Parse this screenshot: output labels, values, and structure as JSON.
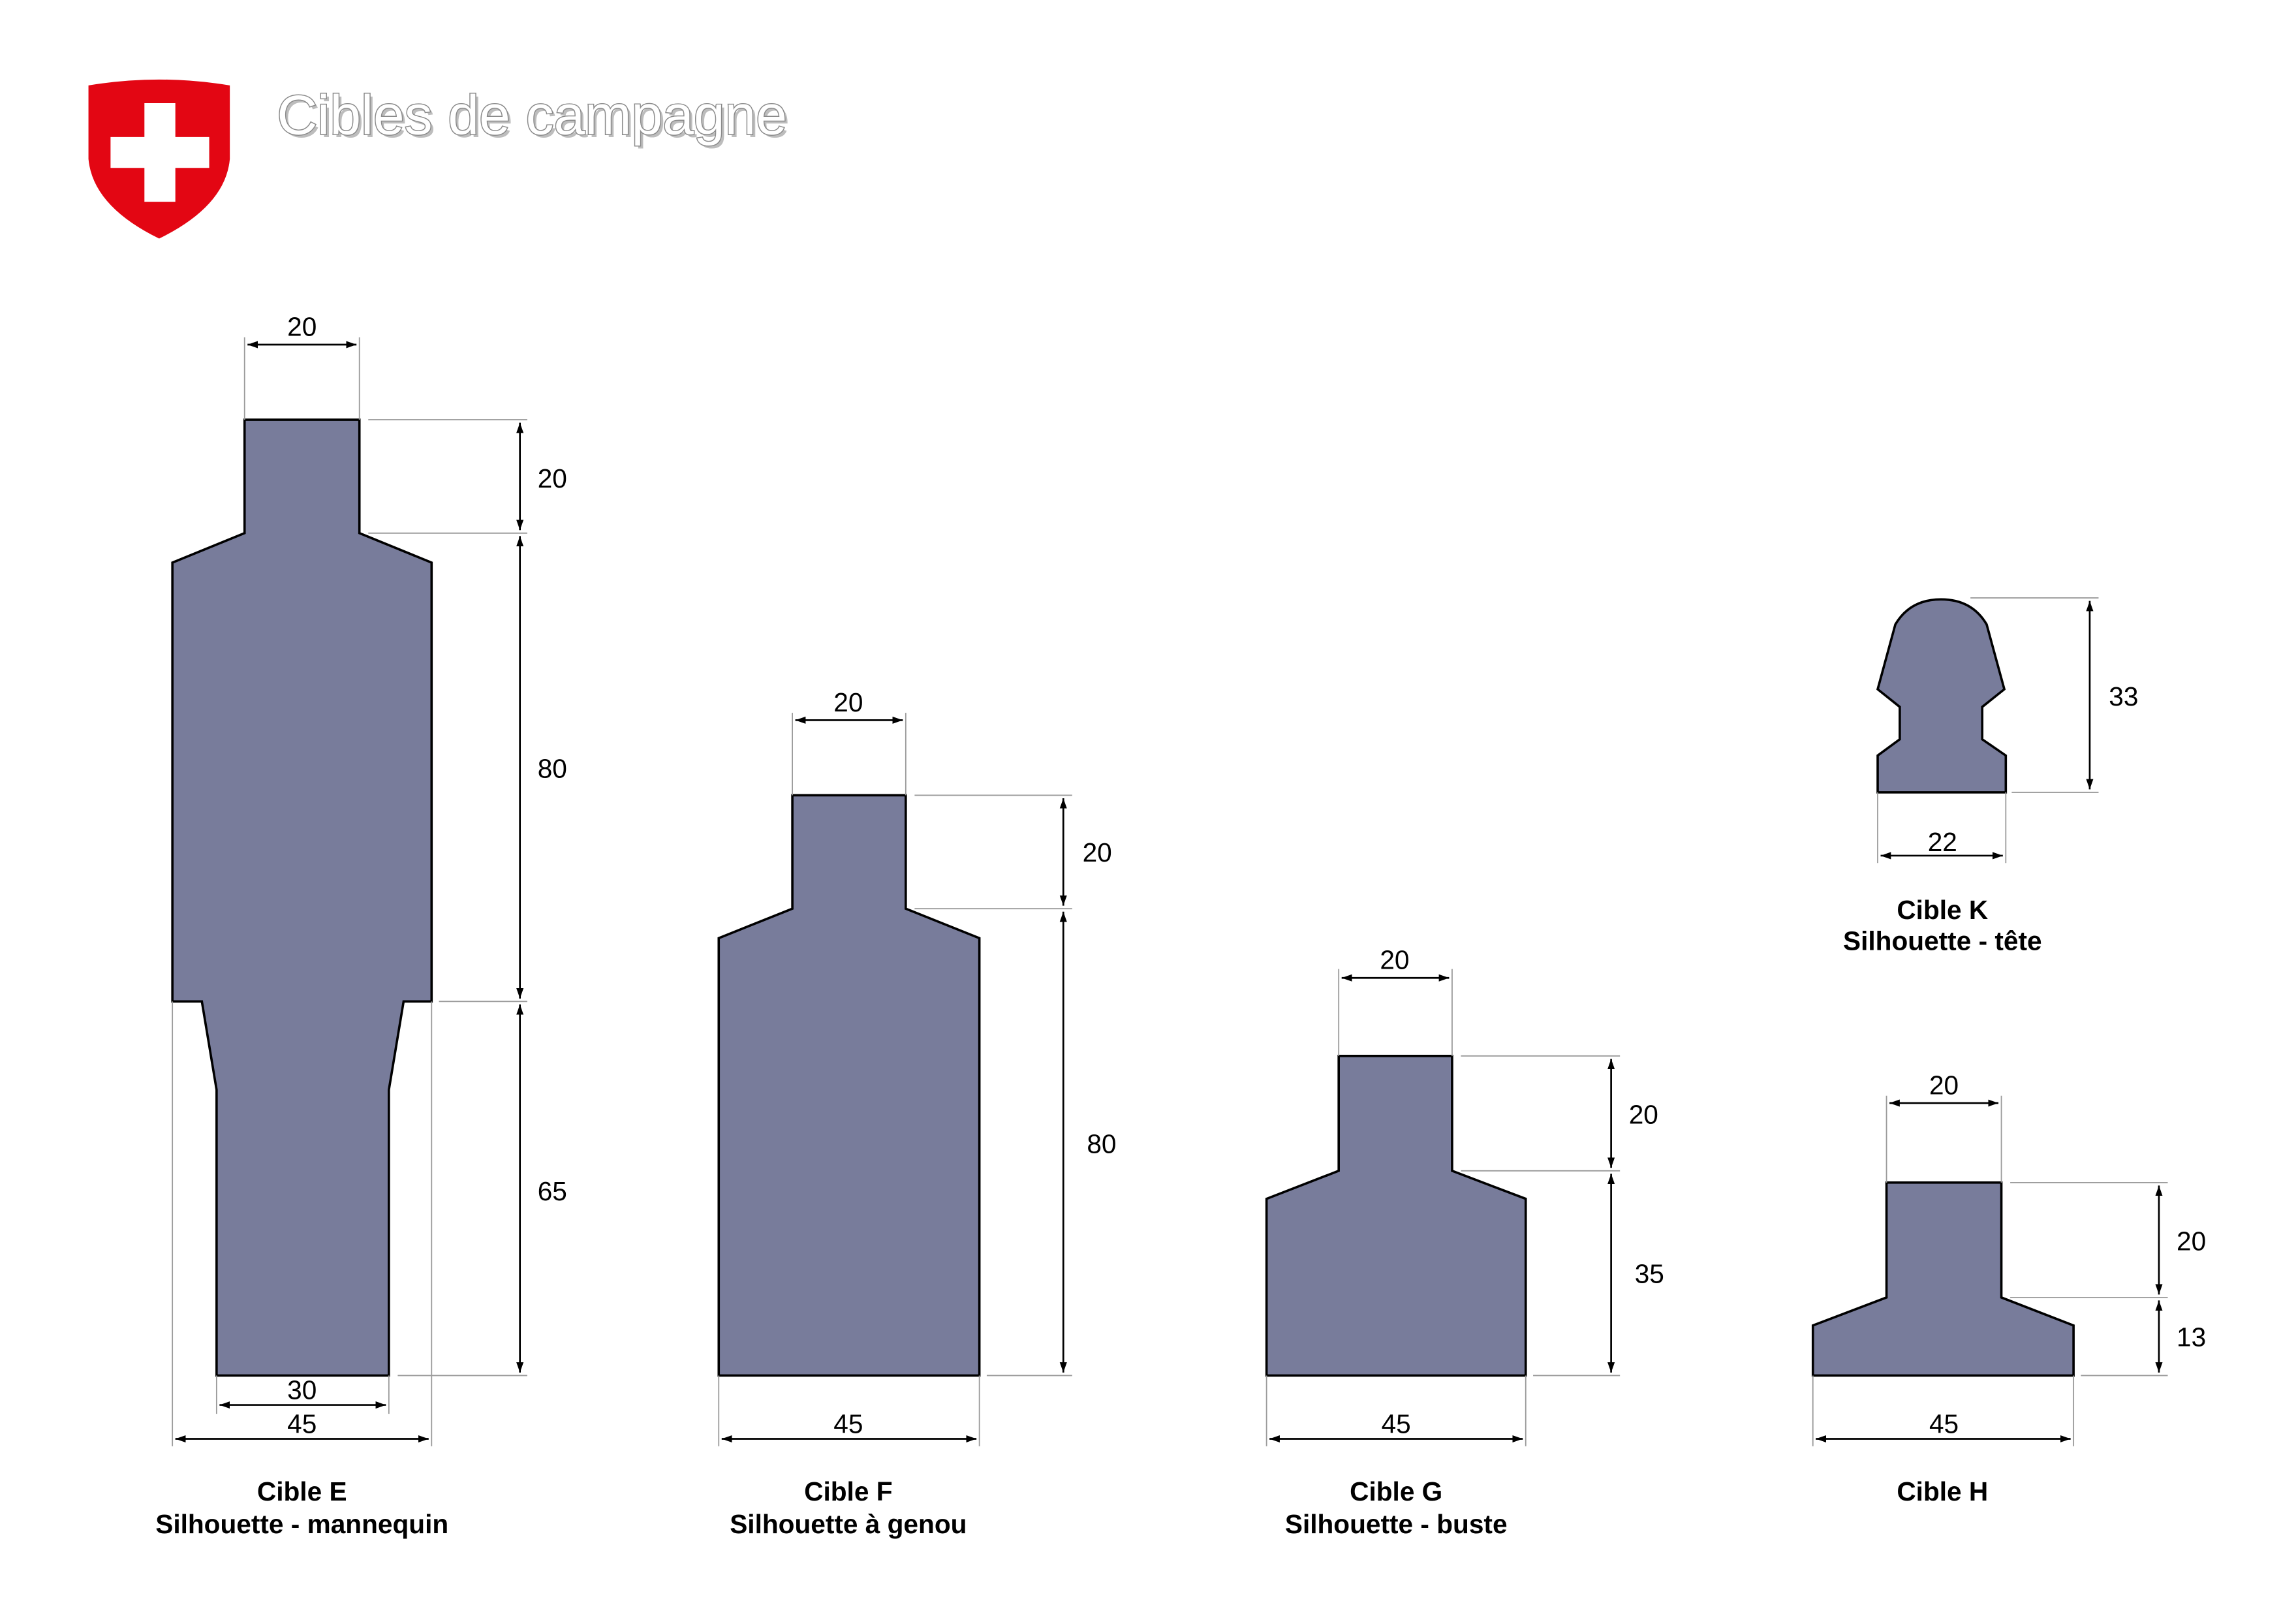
{
  "header": {
    "title": "Cibles de campagne",
    "logo": "swiss-coat-of-arms",
    "logo_colors": {
      "shield": "#e30613",
      "cross": "#ffffff"
    }
  },
  "colors": {
    "target_fill": "#787c9b",
    "outline": "#000000",
    "extension_line": "#9a9a9a"
  },
  "targets": {
    "E": {
      "name": "Cible E",
      "subtitle": "Silhouette - mannequin",
      "dims": {
        "head_width": "20",
        "head_height": "20",
        "torso_height": "80",
        "legs_height": "65",
        "bottom_width": "30",
        "width": "45"
      }
    },
    "F": {
      "name": "Cible F",
      "subtitle": "Silhouette à genou",
      "dims": {
        "head_width": "20",
        "head_height": "20",
        "body_height": "80",
        "width": "45"
      }
    },
    "G": {
      "name": "Cible G",
      "subtitle": "Silhouette - buste",
      "dims": {
        "head_width": "20",
        "head_height": "20",
        "body_height": "35",
        "width": "45"
      }
    },
    "K": {
      "name": "Cible K",
      "subtitle": "Silhouette - tête",
      "dims": {
        "height": "33",
        "width": "22"
      }
    },
    "H": {
      "name": "Cible H",
      "dims": {
        "head_width": "20",
        "head_height": "20",
        "body_height": "13",
        "width": "45"
      }
    }
  }
}
